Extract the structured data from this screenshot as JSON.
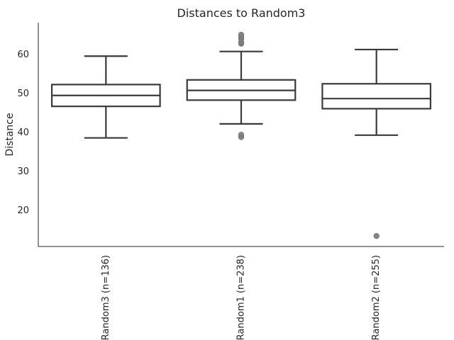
{
  "chart_data": {
    "type": "box",
    "title": "Distances to Random3",
    "xlabel": "",
    "ylabel": "Distance",
    "ylim": [
      10.5,
      68
    ],
    "yticks": [
      20,
      30,
      40,
      50,
      60
    ],
    "grid": false,
    "legend": "none",
    "categories": [
      "Random3 (n=136)",
      "Random1 (n=238)",
      "Random2 (n=255)"
    ],
    "boxes": [
      {
        "label": "Random3 (n=136)",
        "whisker_low": 38.4,
        "q1": 46.5,
        "median": 49.3,
        "q3": 52.1,
        "whisker_high": 59.4,
        "outliers": []
      },
      {
        "label": "Random1 (n=238)",
        "whisker_low": 42.0,
        "q1": 48.1,
        "median": 50.6,
        "q3": 53.3,
        "whisker_high": 60.6,
        "outliers": [
          38.6,
          39.2,
          62.6,
          62.9,
          63.8,
          64.3,
          64.9
        ]
      },
      {
        "label": "Random2 (n=255)",
        "whisker_low": 39.1,
        "q1": 45.9,
        "median": 48.5,
        "q3": 52.3,
        "whisker_high": 61.1,
        "outliers": [
          13.2
        ]
      }
    ]
  },
  "colors": {
    "background": "#ffffff",
    "line": "#3a3a3a",
    "outlier": "#808080",
    "text": "#262626",
    "axis": "#262626"
  }
}
